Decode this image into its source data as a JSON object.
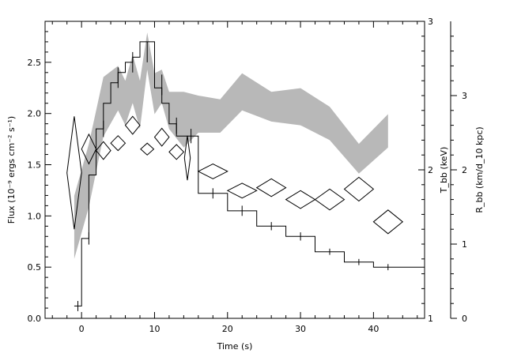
{
  "chart_data": {
    "type": "line",
    "xlabel": "Time (s)",
    "ylabel_left": "Flux (10⁻⁹ ergs cm⁻² s⁻¹)",
    "ylabel_mid": "T_bb (keV)",
    "ylabel_right": "R_bb (km/d_10 kpc)",
    "xlim": [
      -5,
      47
    ],
    "ylim_flux": [
      0,
      2.9
    ],
    "ylim_T": [
      1,
      3
    ],
    "ylim_R": [
      0,
      4
    ],
    "x_ticks": [
      0,
      10,
      20,
      30,
      40
    ],
    "flux_ticks": [
      0.0,
      0.5,
      1.0,
      1.5,
      2.0,
      2.5
    ],
    "T_ticks": [
      1,
      2,
      3
    ],
    "R_ticks": [
      0,
      1,
      2,
      3
    ],
    "flux": {
      "name": "Flux",
      "x_lo": [
        -1,
        0,
        1,
        2,
        3,
        4,
        5,
        6,
        7,
        8,
        9,
        10,
        11,
        12,
        13,
        14,
        16,
        20,
        24,
        28,
        32,
        36,
        40
      ],
      "x_hi": [
        0,
        1,
        2,
        3,
        4,
        5,
        6,
        7,
        8,
        9,
        10,
        11,
        12,
        13,
        14,
        16,
        20,
        24,
        28,
        32,
        36,
        40,
        47
      ],
      "y": [
        0.12,
        0.78,
        1.4,
        1.85,
        2.1,
        2.3,
        2.4,
        2.5,
        2.55,
        2.7,
        2.7,
        2.25,
        2.1,
        1.9,
        1.78,
        1.78,
        1.22,
        1.05,
        0.9,
        0.8,
        0.65,
        0.55,
        0.5
      ],
      "err_x": [
        -0.5,
        1,
        3,
        5,
        7,
        9,
        11,
        13,
        15,
        18,
        22,
        26,
        30,
        34,
        38,
        42
      ],
      "err_y": [
        0.12,
        0.78,
        1.85,
        2.35,
        2.5,
        2.6,
        2.28,
        1.88,
        1.78,
        1.22,
        1.05,
        0.9,
        0.8,
        0.65,
        0.55,
        0.5
      ],
      "err_dy": [
        0.05,
        0.06,
        0.08,
        0.1,
        0.1,
        0.1,
        0.1,
        0.08,
        0.07,
        0.05,
        0.05,
        0.04,
        0.04,
        0.03,
        0.03,
        0.03
      ]
    },
    "temperature": {
      "name": "T_bb",
      "x": [
        -1,
        1,
        3,
        5,
        7,
        9,
        11,
        13,
        14.5,
        18,
        22,
        26,
        30,
        34,
        38,
        42
      ],
      "y": [
        1.98,
        2.14,
        2.13,
        2.18,
        2.3,
        2.14,
        2.22,
        2.12,
        2.08,
        1.99,
        1.86,
        1.88,
        1.8,
        1.8,
        1.87,
        1.65
      ],
      "dx": [
        1,
        1,
        1,
        1,
        1,
        0.9,
        1,
        1,
        0.4,
        2,
        2,
        2,
        2,
        2,
        2,
        2
      ],
      "dy": [
        0.38,
        0.1,
        0.06,
        0.05,
        0.06,
        0.04,
        0.06,
        0.05,
        0.15,
        0.05,
        0.05,
        0.06,
        0.06,
        0.07,
        0.08,
        0.08
      ]
    },
    "radius": {
      "name": "R_bb",
      "x": [
        -1,
        1,
        3,
        5,
        6,
        7,
        8,
        9,
        10,
        11,
        12,
        14,
        16,
        19,
        22,
        26,
        30,
        34,
        38,
        42
      ],
      "y_lo": [
        0.8,
        1.5,
        2.45,
        2.8,
        2.6,
        2.9,
        2.55,
        3.35,
        2.75,
        2.9,
        2.55,
        2.3,
        2.5,
        2.5,
        2.8,
        2.65,
        2.6,
        2.4,
        1.95,
        2.3
      ],
      "y_hi": [
        1.65,
        2.35,
        3.25,
        3.4,
        3.2,
        3.55,
        3.2,
        3.85,
        3.3,
        3.35,
        3.05,
        3.05,
        3.0,
        2.95,
        3.3,
        3.05,
        3.1,
        2.85,
        2.35,
        2.75
      ]
    }
  },
  "colors": {
    "band": "#b8b8b8",
    "ink": "#000000",
    "background": "#ffffff"
  }
}
